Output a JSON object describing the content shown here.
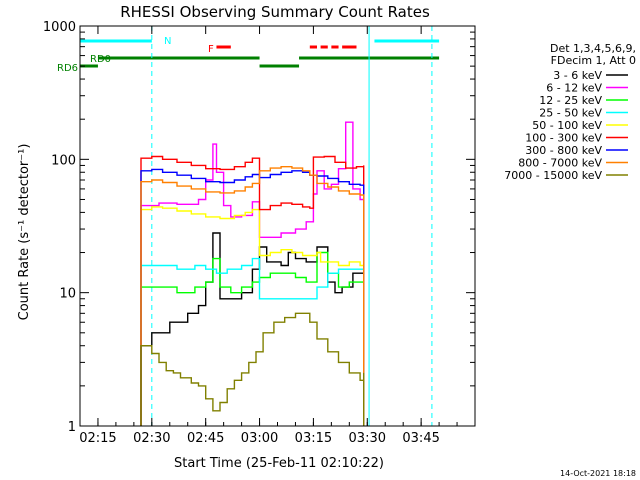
{
  "chart_data": {
    "type": "line",
    "title": "RHESSI Observing Summary Count Rates",
    "xlabel": "Start Time (25-Feb-11 02:10:22)",
    "ylabel": "Count Rate (s⁻¹ detector⁻¹)",
    "yscale": "log",
    "ylim": [
      1,
      1000
    ],
    "xlim_minutes": [
      0,
      70
    ],
    "x_ticks": [
      {
        "t": 5,
        "label": "02:15"
      },
      {
        "t": 20,
        "label": "02:30"
      },
      {
        "t": 35,
        "label": "02:45"
      },
      {
        "t": 50,
        "label": "03:00"
      },
      {
        "t": 65,
        "label": "03:15"
      },
      {
        "t": 80,
        "label": "03:30"
      },
      {
        "t": 95,
        "label": "03:45"
      }
    ],
    "y_ticks": [
      {
        "v": 1,
        "label": "1"
      },
      {
        "v": 10,
        "label": "10"
      },
      {
        "v": 100,
        "label": "100"
      },
      {
        "v": 1000,
        "label": "1000"
      }
    ],
    "legend_header": [
      "Det 1,3,4,5,6,9,",
      "FDecim 1, Att 0"
    ],
    "legend_position": "right",
    "series": [
      {
        "name": "3 - 6 keV",
        "color": "#000000",
        "points": [
          [
            17,
            4
          ],
          [
            20,
            5
          ],
          [
            25,
            6
          ],
          [
            30,
            7
          ],
          [
            33,
            8
          ],
          [
            35,
            12
          ],
          [
            37,
            28
          ],
          [
            39,
            9
          ],
          [
            42,
            9
          ],
          [
            45,
            10
          ],
          [
            48,
            15
          ],
          [
            50,
            22
          ],
          [
            52,
            17
          ],
          [
            56,
            16
          ],
          [
            58,
            20
          ],
          [
            60,
            18
          ],
          [
            63,
            17
          ],
          [
            66,
            22
          ],
          [
            69,
            12
          ],
          [
            71,
            10
          ],
          [
            73,
            11
          ],
          [
            76,
            14
          ],
          [
            79,
            12
          ]
        ]
      },
      {
        "name": "6 - 12 keV",
        "color": "#ff00ff",
        "points": [
          [
            17,
            45
          ],
          [
            22,
            47
          ],
          [
            27,
            46
          ],
          [
            30,
            46
          ],
          [
            33,
            50
          ],
          [
            35,
            70
          ],
          [
            37,
            130
          ],
          [
            38,
            80
          ],
          [
            40,
            45
          ],
          [
            42,
            37
          ],
          [
            45,
            38
          ],
          [
            48,
            48
          ],
          [
            50,
            26
          ],
          [
            52,
            26
          ],
          [
            56,
            28
          ],
          [
            60,
            30
          ],
          [
            63,
            34
          ],
          [
            65,
            55
          ],
          [
            66,
            82
          ],
          [
            68,
            60
          ],
          [
            70,
            65
          ],
          [
            72,
            85
          ],
          [
            74,
            190
          ],
          [
            76,
            60
          ],
          [
            78,
            50
          ],
          [
            79,
            48
          ]
        ]
      },
      {
        "name": "12 - 25 keV",
        "color": "#00ff00",
        "points": [
          [
            17,
            11
          ],
          [
            22,
            11
          ],
          [
            27,
            10
          ],
          [
            32,
            11
          ],
          [
            35,
            12
          ],
          [
            37,
            18
          ],
          [
            39,
            11
          ],
          [
            42,
            10
          ],
          [
            45,
            11
          ],
          [
            48,
            12
          ],
          [
            50,
            13
          ],
          [
            53,
            14
          ],
          [
            57,
            14
          ],
          [
            60,
            13
          ],
          [
            63,
            12
          ],
          [
            66,
            20
          ],
          [
            69,
            14
          ],
          [
            72,
            11
          ],
          [
            75,
            12
          ],
          [
            79,
            10
          ]
        ]
      },
      {
        "name": "25 - 50 keV",
        "color": "#00ffff",
        "points": [
          [
            17,
            16
          ],
          [
            22,
            16
          ],
          [
            27,
            15
          ],
          [
            32,
            16
          ],
          [
            35,
            15
          ],
          [
            38,
            14
          ],
          [
            41,
            15
          ],
          [
            45,
            16
          ],
          [
            48,
            18
          ],
          [
            50,
            9
          ],
          [
            53,
            9
          ],
          [
            57,
            9
          ],
          [
            60,
            9
          ],
          [
            63,
            9
          ],
          [
            66,
            11
          ],
          [
            69,
            14
          ],
          [
            72,
            15
          ],
          [
            75,
            15
          ],
          [
            79,
            16
          ]
        ]
      },
      {
        "name": "50 - 100 keV",
        "color": "#ffff00",
        "points": [
          [
            17,
            42
          ],
          [
            20,
            44
          ],
          [
            23,
            43
          ],
          [
            27,
            41
          ],
          [
            31,
            39
          ],
          [
            35,
            37
          ],
          [
            39,
            36
          ],
          [
            43,
            38
          ],
          [
            46,
            40
          ],
          [
            48,
            42
          ],
          [
            50,
            19
          ],
          [
            53,
            20
          ],
          [
            56,
            21
          ],
          [
            59,
            20
          ],
          [
            62,
            19
          ],
          [
            64,
            19
          ],
          [
            66,
            20
          ],
          [
            67,
            17
          ],
          [
            69,
            17
          ],
          [
            72,
            16
          ],
          [
            75,
            17
          ],
          [
            78,
            16
          ],
          [
            79,
            16
          ]
        ]
      },
      {
        "name": "100 - 300 keV",
        "color": "#ff0000",
        "points": [
          [
            17,
            102
          ],
          [
            20,
            105
          ],
          [
            23,
            100
          ],
          [
            27,
            95
          ],
          [
            31,
            90
          ],
          [
            35,
            85
          ],
          [
            39,
            84
          ],
          [
            43,
            88
          ],
          [
            46,
            95
          ],
          [
            48,
            102
          ],
          [
            50,
            42
          ],
          [
            53,
            45
          ],
          [
            56,
            47
          ],
          [
            59,
            46
          ],
          [
            62,
            44
          ],
          [
            64,
            43
          ],
          [
            65,
            104
          ],
          [
            68,
            105
          ],
          [
            71,
            95
          ],
          [
            74,
            86
          ],
          [
            77,
            88
          ],
          [
            79,
            90
          ]
        ]
      },
      {
        "name": "300 - 800 keV",
        "color": "#0000ff",
        "points": [
          [
            17,
            82
          ],
          [
            20,
            84
          ],
          [
            23,
            80
          ],
          [
            27,
            76
          ],
          [
            31,
            72
          ],
          [
            35,
            68
          ],
          [
            39,
            67
          ],
          [
            43,
            70
          ],
          [
            46,
            74
          ],
          [
            48,
            77
          ],
          [
            50,
            73
          ],
          [
            53,
            77
          ],
          [
            56,
            80
          ],
          [
            59,
            82
          ],
          [
            62,
            80
          ],
          [
            64,
            76
          ],
          [
            66,
            75
          ],
          [
            69,
            72
          ],
          [
            72,
            68
          ],
          [
            75,
            65
          ],
          [
            78,
            64
          ],
          [
            79,
            64
          ]
        ]
      },
      {
        "name": "800 - 7000 keV",
        "color": "#ff8000",
        "points": [
          [
            17,
            68
          ],
          [
            20,
            70
          ],
          [
            23,
            67
          ],
          [
            27,
            63
          ],
          [
            31,
            60
          ],
          [
            35,
            57
          ],
          [
            39,
            56
          ],
          [
            43,
            58
          ],
          [
            46,
            62
          ],
          [
            48,
            66
          ],
          [
            50,
            82
          ],
          [
            53,
            86
          ],
          [
            56,
            88
          ],
          [
            59,
            86
          ],
          [
            62,
            82
          ],
          [
            64,
            76
          ],
          [
            66,
            66
          ],
          [
            69,
            62
          ],
          [
            72,
            58
          ],
          [
            75,
            55
          ],
          [
            78,
            54
          ],
          [
            79,
            54
          ]
        ]
      },
      {
        "name": "7000 - 15000 keV",
        "color": "#808000",
        "points": [
          [
            17,
            4
          ],
          [
            20,
            3.5
          ],
          [
            22,
            3
          ],
          [
            24,
            2.6
          ],
          [
            26,
            2.5
          ],
          [
            28,
            2.3
          ],
          [
            31,
            2.1
          ],
          [
            33,
            2
          ],
          [
            35,
            1.6
          ],
          [
            37,
            1.3
          ],
          [
            39,
            1.5
          ],
          [
            41,
            1.9
          ],
          [
            43,
            2.2
          ],
          [
            45,
            2.5
          ],
          [
            47,
            3
          ],
          [
            49,
            3.6
          ],
          [
            51,
            5
          ],
          [
            54,
            6
          ],
          [
            57,
            6.5
          ],
          [
            60,
            7
          ],
          [
            62,
            7
          ],
          [
            64,
            6
          ],
          [
            66,
            4.5
          ],
          [
            69,
            3.6
          ],
          [
            72,
            3
          ],
          [
            75,
            2.5
          ],
          [
            78,
            2.2
          ],
          [
            79,
            2.5
          ]
        ]
      }
    ],
    "status_bars": [
      {
        "label": "N",
        "color": "#00ffff",
        "segments": [
          [
            0,
            20
          ],
          [
            82,
            100
          ]
        ]
      },
      {
        "label": "F",
        "color": "#ff0000",
        "segments": [
          [
            38,
            42
          ],
          [
            64,
            66
          ],
          [
            67,
            69
          ],
          [
            70,
            72
          ],
          [
            73,
            77
          ]
        ]
      },
      {
        "label": "RD0",
        "color": "#008000",
        "segments": [
          [
            5,
            50
          ],
          [
            61,
            100
          ]
        ]
      },
      {
        "label": "RD6",
        "color": "#008000",
        "segments": [
          [
            0,
            5
          ],
          [
            50,
            61
          ]
        ]
      }
    ],
    "vertical_lines": [
      {
        "t": 20,
        "color": "#00ffff",
        "style": "dashed"
      },
      {
        "t": 80.5,
        "color": "#00ffff",
        "style": "solid"
      },
      {
        "t": 98,
        "color": "#00ffff",
        "style": "dashed"
      }
    ]
  },
  "footer_timestamp": "14-Oct-2021 18:18"
}
